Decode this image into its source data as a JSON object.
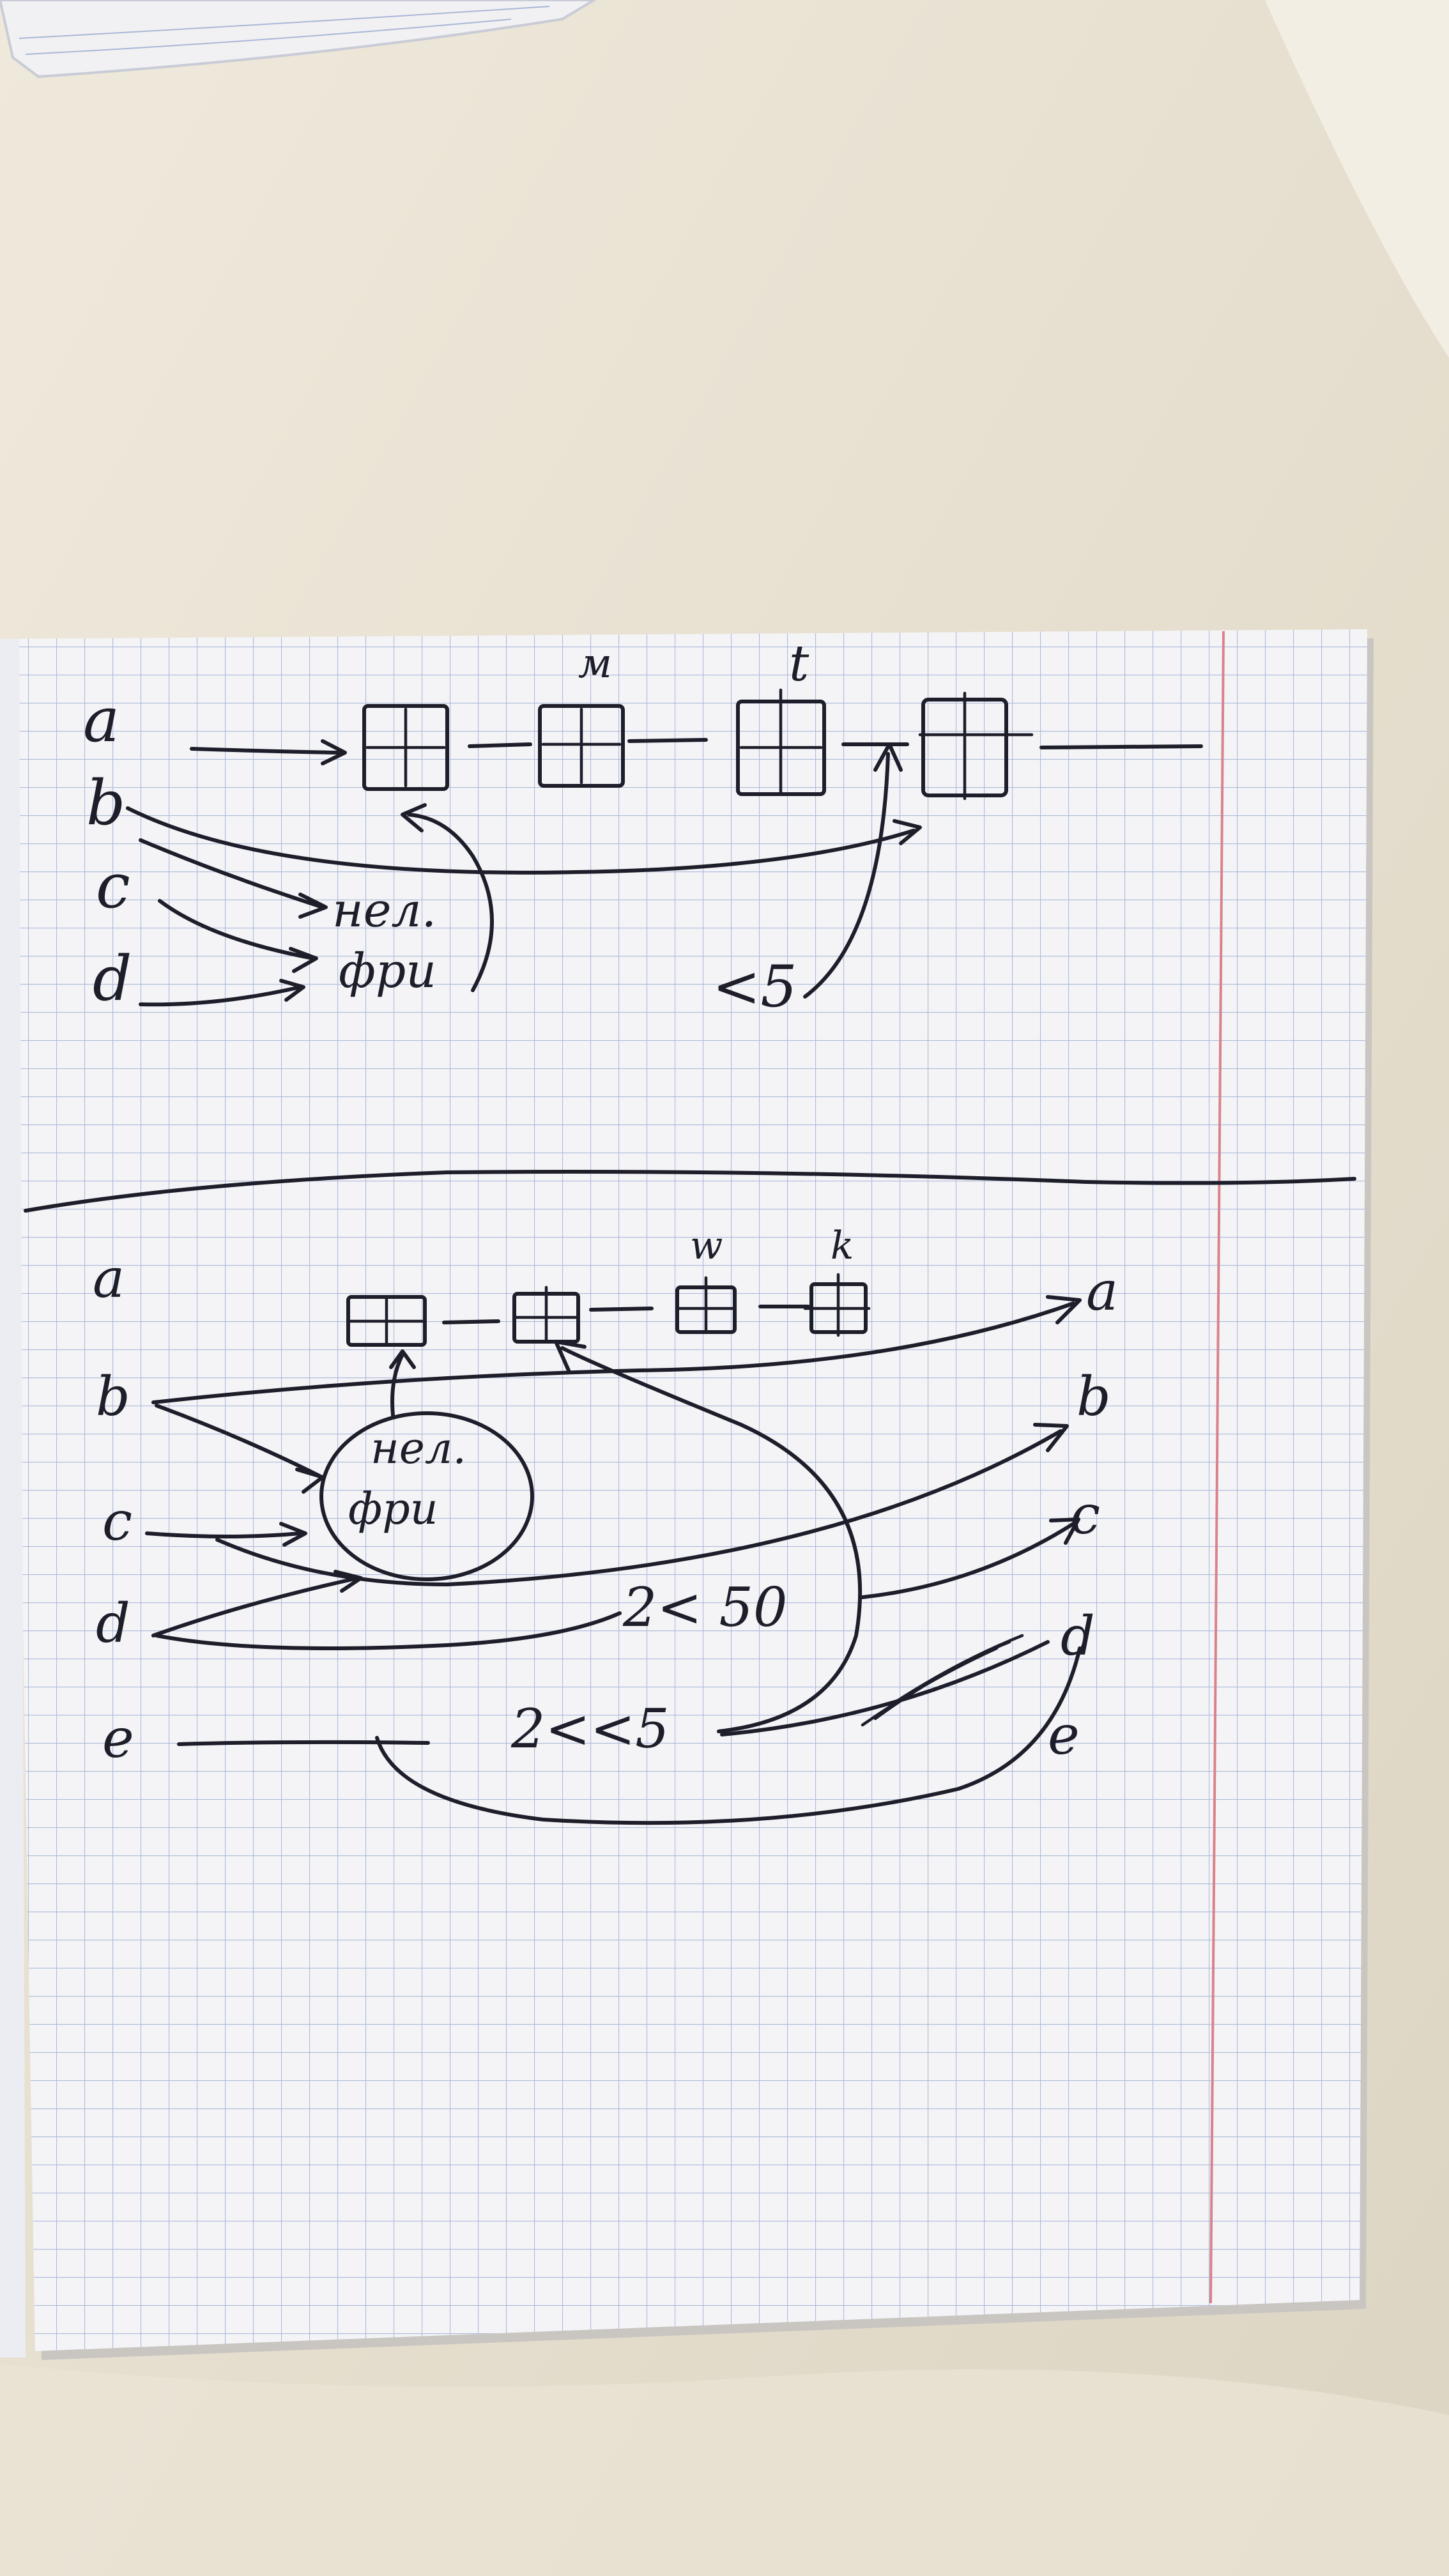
{
  "photo": {
    "subject": "handwritten notebook page",
    "colors": {
      "fabric": "#e8e2d3",
      "paper": "#f4f4f7",
      "grid": "#9fb0d4",
      "margin_line": "#d9828c",
      "ink": "#1d1e2a"
    }
  },
  "top_sketch": {
    "row_labels": [
      "a",
      "b",
      "c",
      "d"
    ],
    "node_labels": [
      "м",
      "t"
    ],
    "note_line1": "нел.",
    "note_line2": "фри",
    "condition": "<5"
  },
  "bottom_sketch": {
    "left_labels": [
      "a",
      "b",
      "c",
      "d",
      "e"
    ],
    "node_labels": [
      "w",
      "k"
    ],
    "right_labels": [
      "a",
      "b",
      "c",
      "d",
      "e"
    ],
    "note_line1": "нел.",
    "note_line2": "фри",
    "condition_1": "2< 50",
    "condition_2": "2<<5"
  }
}
